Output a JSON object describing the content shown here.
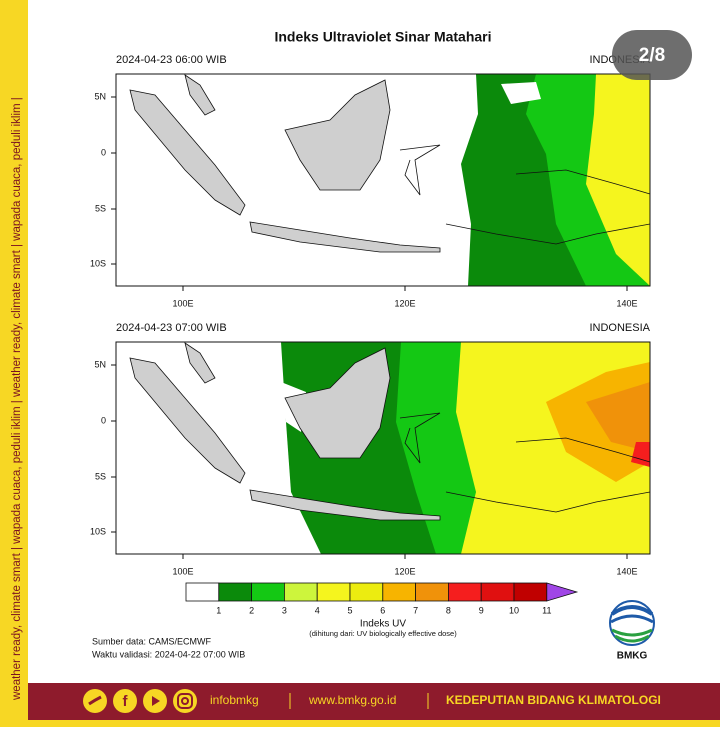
{
  "sidebar": {
    "text": "weather ready, climate smart | wapada cuaca, peduli iklim | weather ready, climate smart | wapada cuaca, peduli iklim |"
  },
  "page_counter": "2/8",
  "title": "Indeks Ultraviolet Sinar Matahari",
  "panels": [
    {
      "time": "2024-04-23 06:00 WIB",
      "region": "INDONESIA"
    },
    {
      "time": "2024-04-23 07:00 WIB",
      "region": "INDONESIA"
    }
  ],
  "lat_labels": [
    "5N",
    "0",
    "5S",
    "10S"
  ],
  "lon_labels": [
    "100E",
    "120E",
    "140E"
  ],
  "colorbar": {
    "labels": [
      "1",
      "2",
      "3",
      "4",
      "5",
      "6",
      "7",
      "8",
      "9",
      "10",
      "11"
    ],
    "colors": [
      "#ffffff",
      "#0b8a0b",
      "#14c814",
      "#cdf53c",
      "#f5f51e",
      "#ecec10",
      "#f7b400",
      "#f0920a",
      "#f51e1e",
      "#e01010",
      "#c00000",
      "#a046e6"
    ],
    "title": "Indeks UV",
    "note": "(dihitung dari: UV biologically effective dose)"
  },
  "source": "Sumber data: CAMS/ECMWF",
  "validity": "Waktu validasi: 2024-04-22 07:00 WIB",
  "logo": "BMKG",
  "footer": {
    "handle": "infobmkg",
    "website": "www.bmkg.go.id",
    "unit": "KEDEPUTIAN BIDANG KLIMATOLOGI"
  }
}
